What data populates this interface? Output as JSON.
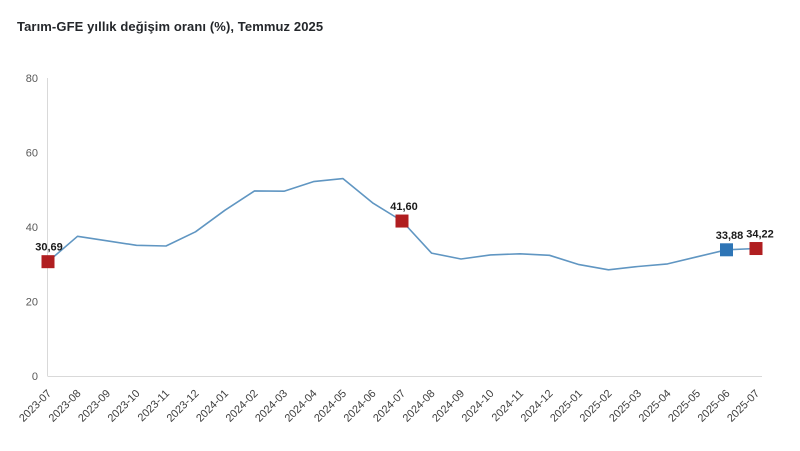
{
  "title": "Tarım-GFE yıllık değişim oranı (%), Temmuz 2025",
  "chart_data": {
    "type": "line",
    "title": "Tarım-GFE yıllık değişim oranı (%), Temmuz 2025",
    "xlabel": "",
    "ylabel": "",
    "ylim": [
      0,
      80
    ],
    "yticks": [
      0,
      20,
      40,
      60,
      80
    ],
    "grid": false,
    "legend_position": "none",
    "categories": [
      "2023-07",
      "2023-08",
      "2023-09",
      "2023-10",
      "2023-11",
      "2023-12",
      "2024-01",
      "2024-02",
      "2024-03",
      "2024-04",
      "2024-05",
      "2024-06",
      "2024-07",
      "2024-08",
      "2024-09",
      "2024-10",
      "2024-11",
      "2024-12",
      "2025-01",
      "2025-02",
      "2025-03",
      "2025-04",
      "2025-05",
      "2025-06",
      "2025-07"
    ],
    "series": [
      {
        "name": "Tarım-GFE yıllık değişim oranı (%)",
        "values": [
          30.69,
          37.5,
          36.3,
          35.1,
          34.9,
          38.7,
          44.5,
          49.7,
          49.6,
          52.2,
          53.0,
          46.5,
          41.6,
          33.0,
          31.4,
          32.5,
          32.8,
          32.4,
          29.9,
          28.5,
          29.4,
          30.1,
          32.0,
          33.88,
          34.22
        ]
      }
    ],
    "annotated_points": [
      {
        "category": "2023-07",
        "index": 0,
        "value": 30.69,
        "label": "30,69",
        "marker_color": "#b01e20",
        "label_dx": 1
      },
      {
        "category": "2024-07",
        "index": 12,
        "value": 41.6,
        "label": "41,60",
        "marker_color": "#b01e20",
        "label_dx": 2
      },
      {
        "category": "2025-06",
        "index": 23,
        "value": 33.88,
        "label": "33,88",
        "marker_color": "#2e75b6",
        "label_dx": 3
      },
      {
        "category": "2025-07",
        "index": 24,
        "value": 34.22,
        "label": "34,22",
        "marker_color": "#b01e20",
        "label_dx": 4
      }
    ],
    "colors": {
      "line": "#6096c2",
      "axis": "#d9d9d9",
      "red_marker": "#b01e20",
      "blue_marker": "#2e75b6"
    }
  }
}
